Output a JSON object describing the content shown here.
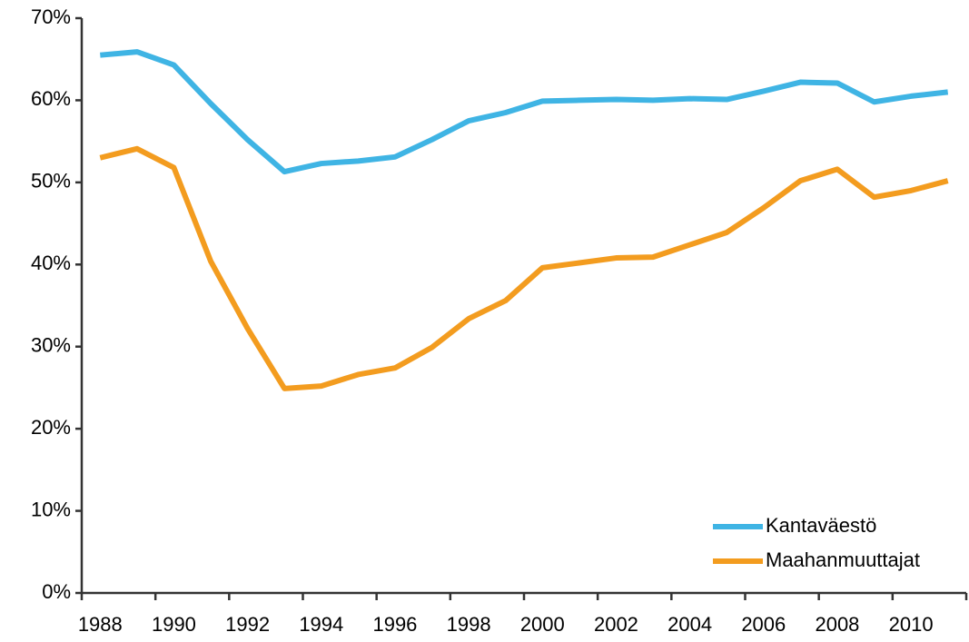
{
  "chart_data": {
    "type": "line",
    "categories": [
      "1988",
      null,
      "1990",
      null,
      "1992",
      null,
      "1994",
      null,
      "1996",
      null,
      "1998",
      null,
      "2000",
      null,
      "2002",
      null,
      "2004",
      null,
      "2006",
      null,
      "2008",
      null,
      "2010",
      null
    ],
    "series": [
      {
        "name": "Kantaväestö",
        "color": "#3fb4e4",
        "values": [
          65.5,
          65.9,
          64.3,
          59.6,
          55.2,
          51.3,
          52.3,
          52.6,
          53.1,
          55.2,
          57.5,
          58.5,
          59.9,
          60.0,
          60.1,
          60.0,
          60.2,
          60.1,
          61.1,
          62.2,
          62.1,
          59.8,
          60.5,
          61.0
        ]
      },
      {
        "name": "Maahanmuuttajat",
        "color": "#f39c1f",
        "values": [
          53.0,
          54.1,
          51.8,
          40.4,
          32.2,
          24.9,
          25.2,
          26.6,
          27.4,
          29.9,
          33.4,
          35.6,
          39.6,
          40.2,
          40.8,
          40.9,
          42.4,
          43.9,
          46.9,
          50.2,
          51.6,
          48.2,
          49.0,
          50.2
        ]
      }
    ],
    "ylim": [
      0,
      70
    ],
    "yticks": [
      {
        "value": 0,
        "label": "0%"
      },
      {
        "value": 10,
        "label": "10%"
      },
      {
        "value": 20,
        "label": "20%"
      },
      {
        "value": 30,
        "label": "30%"
      },
      {
        "value": 40,
        "label": "40%"
      },
      {
        "value": 50,
        "label": "50%"
      },
      {
        "value": 60,
        "label": "60%"
      },
      {
        "value": 70,
        "label": "70%"
      }
    ],
    "grid": false,
    "legend": "lower right"
  }
}
